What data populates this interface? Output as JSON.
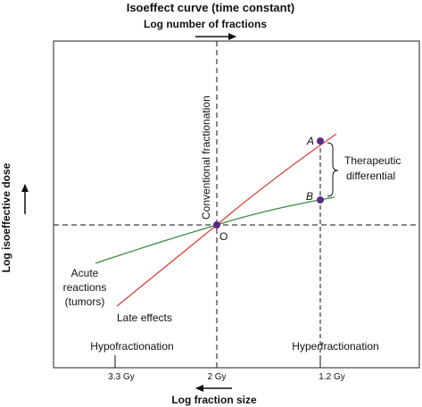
{
  "title": "Isoeffect curve (time constant)",
  "top_axis_label": "Log number of fractions",
  "bottom_axis_label": "Log fraction size",
  "left_axis_label": "Log isoeffective dose",
  "vertical_line_label": "Conventional fractionation",
  "origin_label": "O",
  "point_a_label": "A",
  "point_b_label": "B",
  "bracket_label_line1": "Therapeutic",
  "bracket_label_line2": "differential",
  "acute_label_line1": "Acute",
  "acute_label_line2": "reactions",
  "acute_label_line3": "(tumors)",
  "late_label": "Late effects",
  "hypo_label": "Hypofractionation",
  "hyper_label": "Hyperfractionation",
  "ticks": [
    "3.3 Gy",
    "2 Gy",
    "1.2 Gy"
  ],
  "colors": {
    "late_curve": "#d9413a",
    "acute_curve": "#3a8a3c",
    "point": "#5b2a86",
    "frame": "#222222"
  }
}
